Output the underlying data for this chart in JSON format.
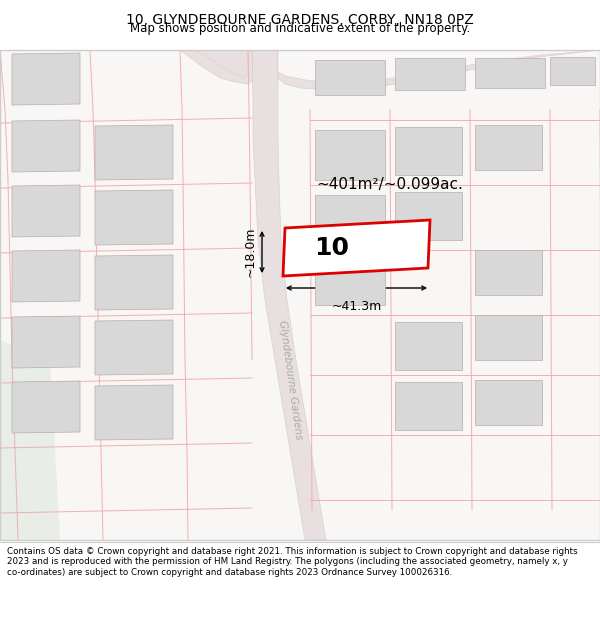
{
  "title": "10, GLYNDEBOURNE GARDENS, CORBY, NN18 0PZ",
  "subtitle": "Map shows position and indicative extent of the property.",
  "footer": "Contains OS data © Crown copyright and database right 2021. This information is subject to Crown copyright and database rights 2023 and is reproduced with the permission of HM Land Registry. The polygons (including the associated geometry, namely x, y co-ordinates) are subject to Crown copyright and database rights 2023 Ordnance Survey 100026316.",
  "area_label": "~401m²/~0.099ac.",
  "width_label": "~41.3m",
  "height_label": "~18.0m",
  "house_number": "10",
  "map_bg": "#f9f6f6",
  "road_fill": "#e8e0e0",
  "road_edge": "#d8c8c8",
  "plot_outline_color": "#dd0000",
  "plot_fill": "#ffffff",
  "building_fill": "#d8d8d8",
  "building_outline": "#bbaaaa",
  "cadastral_color": "#f0a8a8",
  "road_label": "Glyndebourne Gardens",
  "border_color": "#cccccc",
  "green_fill": "#e8ede8",
  "title_fontsize": 10.0,
  "subtitle_fontsize": 8.5,
  "footer_fontsize": 6.3
}
